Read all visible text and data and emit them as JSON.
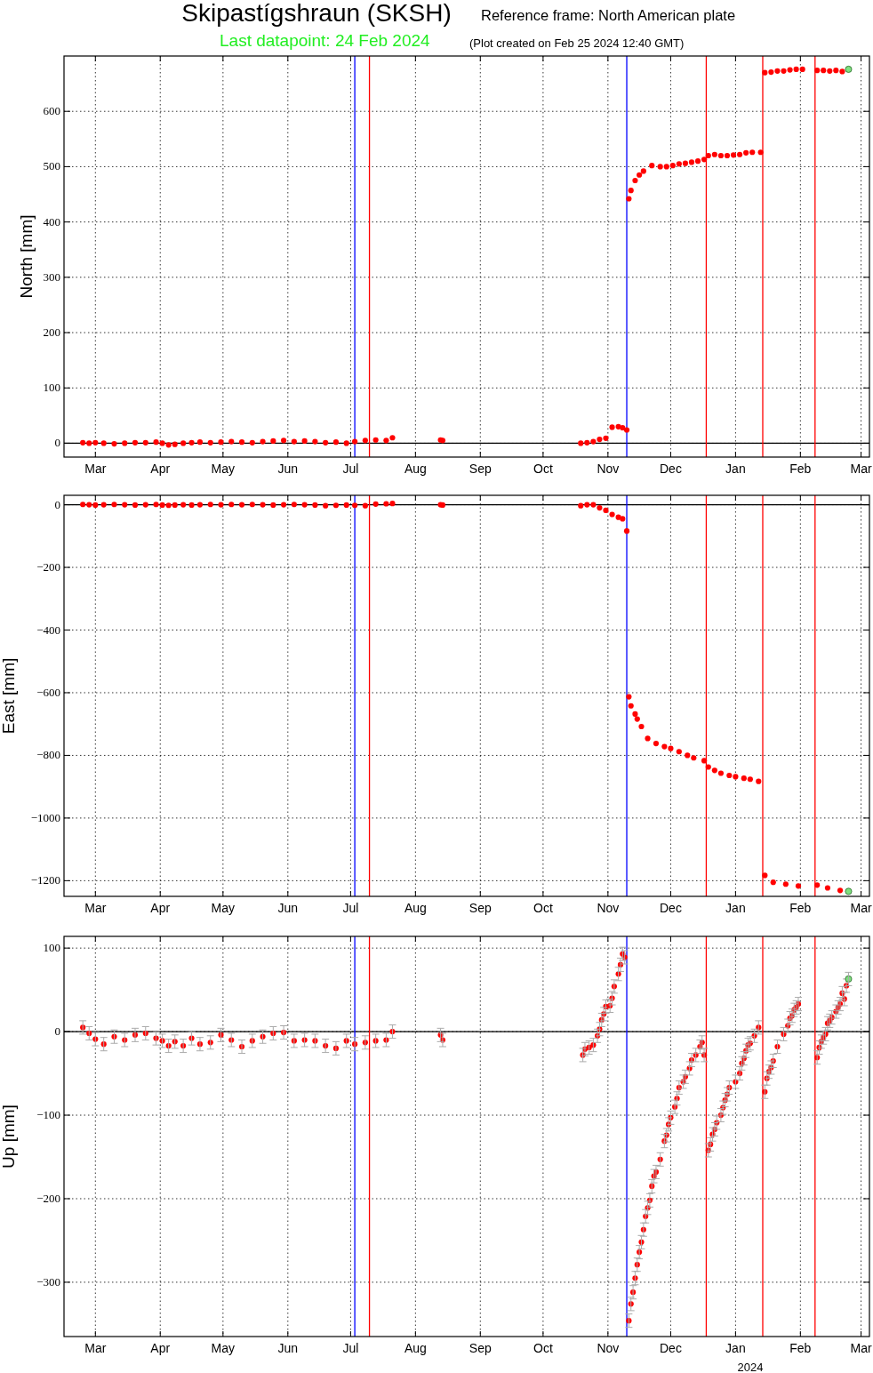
{
  "chart_data": [
    {
      "type": "scatter",
      "title": "Skipastígshraun (SKSH)",
      "subtitle": "Reference frame: North American plate",
      "ylabel": "North [mm]",
      "annotations": [
        "Last datapoint: 24 Feb 2024",
        "(Plot created on Feb 25 2024 12:40 GMT)"
      ],
      "grid": true,
      "marker": "circle",
      "xlim": [
        "2023-02-14",
        "2024-03-05"
      ],
      "xticks": [
        {
          "value": "2023-03-01",
          "label": "Mar"
        },
        {
          "value": "2023-04-01",
          "label": "Apr"
        },
        {
          "value": "2023-05-01",
          "label": "May"
        },
        {
          "value": "2023-06-01",
          "label": "Jun"
        },
        {
          "value": "2023-07-01",
          "label": "Jul"
        },
        {
          "value": "2023-08-01",
          "label": "Aug"
        },
        {
          "value": "2023-09-01",
          "label": "Sep"
        },
        {
          "value": "2023-10-01",
          "label": "Oct"
        },
        {
          "value": "2023-11-01",
          "label": "Nov"
        },
        {
          "value": "2023-12-01",
          "label": "Dec"
        },
        {
          "value": "2024-01-01",
          "label": "Jan"
        },
        {
          "value": "2024-02-01",
          "label": "Feb"
        },
        {
          "value": "2024-03-01",
          "label": "Mar"
        }
      ],
      "ylim": [
        -25,
        700
      ],
      "yticks": [
        0,
        100,
        200,
        300,
        400,
        500,
        600
      ],
      "ref_lines": [
        {
          "axis": "y",
          "value": 0,
          "color": "#000000"
        },
        {
          "axis": "x",
          "value": "2023-07-03",
          "color": "#0000ff"
        },
        {
          "axis": "x",
          "value": "2023-07-10",
          "color": "#ff0000"
        },
        {
          "axis": "x",
          "value": "2023-11-10",
          "color": "#0000ff"
        },
        {
          "axis": "x",
          "value": "2023-12-18",
          "color": "#ff0000"
        },
        {
          "axis": "x",
          "value": "2024-01-14",
          "color": "#ff0000"
        },
        {
          "axis": "x",
          "value": "2024-02-08",
          "color": "#ff0000"
        }
      ],
      "series": [
        {
          "color": "#ff0000",
          "x": [
            "2023-02-23",
            "2023-02-26",
            "2023-03-01",
            "2023-03-05",
            "2023-03-10",
            "2023-03-15",
            "2023-03-20",
            "2023-03-25",
            "2023-03-30",
            "2023-04-02",
            "2023-04-05",
            "2023-04-08",
            "2023-04-12",
            "2023-04-16",
            "2023-04-20",
            "2023-04-25",
            "2023-04-30",
            "2023-05-05",
            "2023-05-10",
            "2023-05-15",
            "2023-05-20",
            "2023-05-25",
            "2023-05-30",
            "2023-06-04",
            "2023-06-09",
            "2023-06-14",
            "2023-06-19",
            "2023-06-24",
            "2023-06-29",
            "2023-07-03",
            "2023-07-08",
            "2023-07-13",
            "2023-07-18",
            "2023-07-21",
            "2023-08-13",
            "2023-08-14",
            "2023-10-19",
            "2023-10-22",
            "2023-10-25",
            "2023-10-28",
            "2023-10-31",
            "2023-11-03",
            "2023-11-06",
            "2023-11-08",
            "2023-11-10",
            "2023-11-11",
            "2023-11-12",
            "2023-11-14",
            "2023-11-16",
            "2023-11-18",
            "2023-11-22",
            "2023-11-26",
            "2023-11-29",
            "2023-12-02",
            "2023-12-05",
            "2023-12-08",
            "2023-12-11",
            "2023-12-14",
            "2023-12-17",
            "2023-12-19",
            "2023-12-22",
            "2023-12-25",
            "2023-12-28",
            "2023-12-31",
            "2024-01-03",
            "2024-01-06",
            "2024-01-09",
            "2024-01-13",
            "2024-01-15",
            "2024-01-18",
            "2024-01-21",
            "2024-01-24",
            "2024-01-27",
            "2024-01-30",
            "2024-02-02",
            "2024-02-09",
            "2024-02-12",
            "2024-02-15",
            "2024-02-18",
            "2024-02-21"
          ],
          "values": [
            1,
            0,
            1,
            0,
            -1,
            0,
            1,
            1,
            2,
            0,
            -3,
            -2,
            0,
            1,
            2,
            1,
            2,
            3,
            2,
            1,
            3,
            4,
            5,
            3,
            4,
            3,
            1,
            2,
            0,
            3,
            5,
            6,
            5,
            10,
            6,
            5,
            0,
            1,
            3,
            7,
            9,
            29,
            30,
            28,
            24,
            442,
            457,
            475,
            485,
            492,
            502,
            500,
            500,
            502,
            505,
            506,
            508,
            510,
            513,
            520,
            522,
            520,
            520,
            521,
            522,
            525,
            526,
            526,
            670,
            671,
            673,
            673,
            675,
            676,
            676,
            674,
            674,
            673,
            674,
            672
          ]
        },
        {
          "color": "#80e080",
          "x": [
            "2024-02-24"
          ],
          "values": [
            676
          ]
        }
      ]
    },
    {
      "type": "scatter",
      "ylabel": "East [mm]",
      "grid": true,
      "marker": "circle",
      "xlim": [
        "2023-02-14",
        "2024-03-05"
      ],
      "xticks": [
        {
          "value": "2023-03-01",
          "label": "Mar"
        },
        {
          "value": "2023-04-01",
          "label": "Apr"
        },
        {
          "value": "2023-05-01",
          "label": "May"
        },
        {
          "value": "2023-06-01",
          "label": "Jun"
        },
        {
          "value": "2023-07-01",
          "label": "Jul"
        },
        {
          "value": "2023-08-01",
          "label": "Aug"
        },
        {
          "value": "2023-09-01",
          "label": "Sep"
        },
        {
          "value": "2023-10-01",
          "label": "Oct"
        },
        {
          "value": "2023-11-01",
          "label": "Nov"
        },
        {
          "value": "2023-12-01",
          "label": "Dec"
        },
        {
          "value": "2024-01-01",
          "label": "Jan"
        },
        {
          "value": "2024-02-01",
          "label": "Feb"
        },
        {
          "value": "2024-03-01",
          "label": "Mar"
        }
      ],
      "ylim": [
        -1250,
        30
      ],
      "yticks": [
        {
          "value": -1200,
          "label": "−1200"
        },
        {
          "value": -1000,
          "label": "−1000"
        },
        {
          "value": -800,
          "label": "−800"
        },
        {
          "value": -600,
          "label": "−600"
        },
        {
          "value": -400,
          "label": "−400"
        },
        {
          "value": -200,
          "label": "−200"
        },
        0
      ],
      "ref_lines": [
        {
          "axis": "y",
          "value": 0,
          "color": "#000000"
        },
        {
          "axis": "x",
          "value": "2023-07-03",
          "color": "#0000ff"
        },
        {
          "axis": "x",
          "value": "2023-07-10",
          "color": "#ff0000"
        },
        {
          "axis": "x",
          "value": "2023-11-10",
          "color": "#0000ff"
        },
        {
          "axis": "x",
          "value": "2023-12-18",
          "color": "#ff0000"
        },
        {
          "axis": "x",
          "value": "2024-01-14",
          "color": "#ff0000"
        },
        {
          "axis": "x",
          "value": "2024-02-08",
          "color": "#ff0000"
        }
      ],
      "series": [
        {
          "color": "#ff0000",
          "x": [
            "2023-02-23",
            "2023-02-26",
            "2023-03-01",
            "2023-03-05",
            "2023-03-10",
            "2023-03-15",
            "2023-03-20",
            "2023-03-25",
            "2023-03-30",
            "2023-04-02",
            "2023-04-05",
            "2023-04-08",
            "2023-04-12",
            "2023-04-16",
            "2023-04-20",
            "2023-04-25",
            "2023-04-30",
            "2023-05-05",
            "2023-05-10",
            "2023-05-15",
            "2023-05-20",
            "2023-05-25",
            "2023-05-30",
            "2023-06-04",
            "2023-06-09",
            "2023-06-14",
            "2023-06-19",
            "2023-06-24",
            "2023-06-29",
            "2023-07-03",
            "2023-07-08",
            "2023-07-13",
            "2023-07-18",
            "2023-07-21",
            "2023-08-13",
            "2023-08-14",
            "2023-10-19",
            "2023-10-22",
            "2023-10-25",
            "2023-10-28",
            "2023-10-31",
            "2023-11-03",
            "2023-11-06",
            "2023-11-08",
            "2023-11-10",
            "2023-11-11",
            "2023-11-12",
            "2023-11-14",
            "2023-11-15",
            "2023-11-17",
            "2023-11-20",
            "2023-11-24",
            "2023-11-28",
            "2023-12-01",
            "2023-12-05",
            "2023-12-09",
            "2023-12-12",
            "2023-12-17",
            "2023-12-19",
            "2023-12-22",
            "2023-12-25",
            "2023-12-29",
            "2024-01-01",
            "2024-01-05",
            "2024-01-08",
            "2024-01-12",
            "2024-01-15",
            "2024-01-19",
            "2024-01-25",
            "2024-01-31",
            "2024-02-09",
            "2024-02-14",
            "2024-02-20"
          ],
          "values": [
            1,
            0,
            -1,
            0,
            1,
            0,
            -1,
            0,
            1,
            -1,
            -2,
            -1,
            0,
            -1,
            0,
            1,
            0,
            1,
            0,
            1,
            0,
            -1,
            0,
            1,
            0,
            -1,
            -3,
            -2,
            -1,
            -2,
            -3,
            2,
            3,
            4,
            0,
            -1,
            -3,
            0,
            0,
            -10,
            -18,
            -31,
            -40,
            -45,
            -84,
            -613,
            -642,
            -668,
            -684,
            -708,
            -746,
            -762,
            -772,
            -778,
            -788,
            -800,
            -808,
            -817,
            -837,
            -848,
            -857,
            -864,
            -868,
            -873,
            -876,
            -883,
            -1183,
            -1205,
            -1211,
            -1217,
            -1214,
            -1223,
            -1231
          ]
        },
        {
          "color": "#80e080",
          "x": [
            "2024-02-24"
          ],
          "values": [
            -1234
          ]
        }
      ]
    },
    {
      "type": "scatter",
      "ylabel": "Up [mm]",
      "grid": true,
      "marker": "circle",
      "annotations": [
        "2024"
      ],
      "xlim": [
        "2023-02-14",
        "2024-03-05"
      ],
      "xticks": [
        {
          "value": "2023-03-01",
          "label": "Mar"
        },
        {
          "value": "2023-04-01",
          "label": "Apr"
        },
        {
          "value": "2023-05-01",
          "label": "May"
        },
        {
          "value": "2023-06-01",
          "label": "Jun"
        },
        {
          "value": "2023-07-01",
          "label": "Jul"
        },
        {
          "value": "2023-08-01",
          "label": "Aug"
        },
        {
          "value": "2023-09-01",
          "label": "Sep"
        },
        {
          "value": "2023-10-01",
          "label": "Oct"
        },
        {
          "value": "2023-11-01",
          "label": "Nov"
        },
        {
          "value": "2023-12-01",
          "label": "Dec"
        },
        {
          "value": "2024-01-01",
          "label": "Jan"
        },
        {
          "value": "2024-02-01",
          "label": "Feb"
        },
        {
          "value": "2024-03-01",
          "label": "Mar"
        }
      ],
      "ylim": [
        -365,
        114
      ],
      "yticks": [
        {
          "value": -300,
          "label": "−300"
        },
        {
          "value": -200,
          "label": "−200"
        },
        {
          "value": -100,
          "label": "−100"
        },
        0,
        100
      ],
      "ref_lines": [
        {
          "axis": "y",
          "value": 0,
          "color": "#000000"
        },
        {
          "axis": "x",
          "value": "2023-07-03",
          "color": "#0000ff"
        },
        {
          "axis": "x",
          "value": "2023-07-10",
          "color": "#ff0000"
        },
        {
          "axis": "x",
          "value": "2023-11-10",
          "color": "#0000ff"
        },
        {
          "axis": "x",
          "value": "2023-12-18",
          "color": "#ff0000"
        },
        {
          "axis": "x",
          "value": "2024-01-14",
          "color": "#ff0000"
        },
        {
          "axis": "x",
          "value": "2024-02-08",
          "color": "#ff0000"
        }
      ],
      "series": [
        {
          "color": "#ff0000",
          "x": [
            "2023-02-23",
            "2023-02-26",
            "2023-03-01",
            "2023-03-05",
            "2023-03-10",
            "2023-03-15",
            "2023-03-20",
            "2023-03-25",
            "2023-03-30",
            "2023-04-02",
            "2023-04-05",
            "2023-04-08",
            "2023-04-12",
            "2023-04-16",
            "2023-04-20",
            "2023-04-25",
            "2023-04-30",
            "2023-05-05",
            "2023-05-10",
            "2023-05-15",
            "2023-05-20",
            "2023-05-25",
            "2023-05-30",
            "2023-06-04",
            "2023-06-09",
            "2023-06-14",
            "2023-06-19",
            "2023-06-24",
            "2023-06-29",
            "2023-07-03",
            "2023-07-08",
            "2023-07-13",
            "2023-07-18",
            "2023-07-21",
            "2023-08-13",
            "2023-08-14",
            "2023-10-20",
            "2023-10-21",
            "2023-10-23",
            "2023-10-25",
            "2023-10-27",
            "2023-10-28",
            "2023-10-29",
            "2023-10-30",
            "2023-10-31",
            "2023-11-02",
            "2023-11-03",
            "2023-11-04",
            "2023-11-06",
            "2023-11-07",
            "2023-11-08",
            "2023-11-09",
            "2023-11-11",
            "2023-11-12",
            "2023-11-13",
            "2023-11-14",
            "2023-11-15",
            "2023-11-16",
            "2023-11-17",
            "2023-11-18",
            "2023-11-19",
            "2023-11-20",
            "2023-11-21",
            "2023-11-22",
            "2023-11-23",
            "2023-11-24",
            "2023-11-26",
            "2023-11-28",
            "2023-11-29",
            "2023-11-30",
            "2023-12-01",
            "2023-12-03",
            "2023-12-04",
            "2023-12-05",
            "2023-12-07",
            "2023-12-08",
            "2023-12-10",
            "2023-12-11",
            "2023-12-13",
            "2023-12-15",
            "2023-12-16",
            "2023-12-17",
            "2023-12-19",
            "2023-12-20",
            "2023-12-21",
            "2023-12-22",
            "2023-12-23",
            "2023-12-25",
            "2023-12-26",
            "2023-12-27",
            "2023-12-28",
            "2023-12-29",
            "2024-01-01",
            "2024-01-03",
            "2024-01-04",
            "2024-01-05",
            "2024-01-06",
            "2024-01-07",
            "2024-01-08",
            "2024-01-10",
            "2024-01-12",
            "2024-01-15",
            "2024-01-16",
            "2024-01-17",
            "2024-01-18",
            "2024-01-19",
            "2024-01-21",
            "2024-01-24",
            "2024-01-26",
            "2024-01-27",
            "2024-01-28",
            "2024-01-29",
            "2024-01-30",
            "2024-01-31",
            "2024-02-09",
            "2024-02-10",
            "2024-02-11",
            "2024-02-12",
            "2024-02-13",
            "2024-02-14",
            "2024-02-15",
            "2024-02-16",
            "2024-02-18",
            "2024-02-19",
            "2024-02-20",
            "2024-02-21",
            "2024-02-22",
            "2024-02-23"
          ],
          "values": [
            5,
            -2,
            -9,
            -15,
            -6,
            -10,
            -4,
            -2,
            -8,
            -11,
            -17,
            -12,
            -17,
            -8,
            -15,
            -13,
            -4,
            -10,
            -18,
            -11,
            -6,
            -2,
            -1,
            -11,
            -10,
            -11,
            -17,
            -20,
            -11,
            -15,
            -13,
            -11,
            -10,
            0,
            -4,
            -10,
            -28,
            -21,
            -19,
            -16,
            -5,
            3,
            14,
            21,
            30,
            31,
            40,
            54,
            69,
            80,
            93,
            89,
            -346,
            -326,
            -312,
            -295,
            -279,
            -264,
            -252,
            -237,
            -221,
            -211,
            -202,
            -185,
            -173,
            -168,
            -153,
            -131,
            -124,
            -111,
            -103,
            -90,
            -80,
            -67,
            -60,
            -54,
            -44,
            -34,
            -28,
            -18,
            -13,
            -28,
            -142,
            -135,
            -123,
            -117,
            -109,
            -100,
            -91,
            -82,
            -75,
            -67,
            -60,
            -50,
            -38,
            -32,
            -23,
            -16,
            -14,
            -5,
            5,
            -72,
            -56,
            -48,
            -43,
            -35,
            -18,
            -3,
            7,
            16,
            19,
            26,
            29,
            33,
            -31,
            -19,
            -12,
            -7,
            -3,
            10,
            13,
            17,
            24,
            29,
            33,
            46,
            39,
            55
          ],
          "errors": [
            8,
            8,
            8,
            8,
            8,
            8,
            8,
            8,
            8,
            8,
            8,
            8,
            8,
            8,
            8,
            8,
            8,
            8,
            8,
            8,
            8,
            8,
            8,
            8,
            8,
            8,
            8,
            8,
            8,
            8,
            8,
            8,
            8,
            8,
            8,
            8,
            8,
            8,
            8,
            8,
            8,
            8,
            8,
            8,
            8,
            8,
            8,
            8,
            8,
            8,
            8,
            8,
            8,
            8,
            8,
            8,
            8,
            8,
            8,
            8,
            8,
            8,
            8,
            8,
            8,
            8,
            8,
            8,
            8,
            8,
            8,
            8,
            8,
            8,
            8,
            8,
            8,
            8,
            8,
            8,
            8,
            8,
            8,
            8,
            8,
            8,
            8,
            8,
            8,
            8,
            8,
            8,
            8,
            8,
            8,
            8,
            8,
            8,
            8,
            8,
            8,
            8,
            8,
            8,
            8,
            8,
            8,
            8,
            8,
            8,
            8,
            8,
            8,
            8,
            8,
            8,
            8,
            8,
            8,
            8,
            8,
            8,
            8,
            8,
            8,
            8,
            8,
            8
          ]
        },
        {
          "color": "#80e080",
          "x": [
            "2024-02-24"
          ],
          "values": [
            63
          ],
          "errors": [
            8
          ]
        }
      ]
    }
  ]
}
